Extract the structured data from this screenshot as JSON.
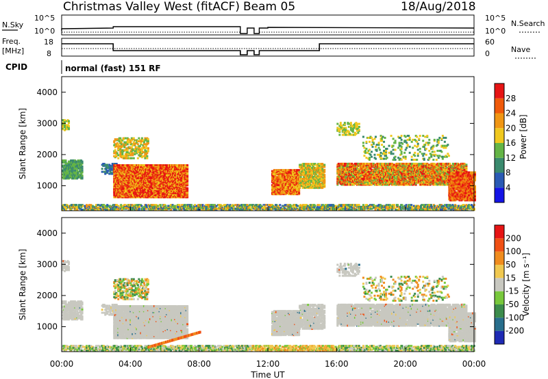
{
  "header": {
    "title": "Christmas Valley West (fitACF)",
    "beam": "Beam 05",
    "date": "18/Aug/2018"
  },
  "strip_nsky": {
    "left_label": "N.Sky",
    "left_ticks": [
      "10^5",
      "10^0"
    ],
    "right_label": "N.Search",
    "right_ticks": [
      "10^5",
      "10^0"
    ]
  },
  "strip_freq": {
    "left_label_1": "Freq.",
    "left_label_2": "[MHz]",
    "left_ticks": [
      "18",
      "8"
    ],
    "right_label": "Nave",
    "right_ticks": [
      "60",
      "0"
    ]
  },
  "cpid": {
    "label": "CPID",
    "text": "normal (fast) 151 RF"
  },
  "colors": {
    "scatter_gray": "#c8c8c0",
    "power_red": "#e8221a",
    "power_orange": "#f07a1a",
    "power_yellow": "#f2c21c",
    "power_green": "#3e9e4e",
    "power_blue": "#2a3ecc"
  },
  "chart_data": [
    {
      "type": "heatmap",
      "panel": "power",
      "ylabel": "Slant Range [km]",
      "y_ticks": [
        "1000",
        "2000",
        "3000",
        "4000"
      ],
      "ylim": [
        200,
        4500
      ],
      "colorbar_label": "Power [dB]",
      "colorbar_ticks": [
        "4",
        "8",
        "12",
        "16",
        "20",
        "24",
        "28"
      ],
      "colorbar_colors": [
        "#1414e6",
        "#2a5ab4",
        "#3a8a6e",
        "#64b446",
        "#f0c81e",
        "#f09614",
        "#f05a0a",
        "#e61414"
      ]
    },
    {
      "type": "heatmap",
      "panel": "velocity",
      "ylabel": "Slant Range [km]",
      "y_ticks": [
        "1000",
        "2000",
        "3000",
        "4000"
      ],
      "ylim": [
        200,
        4500
      ],
      "colorbar_label": "Velocity [m s⁻¹]",
      "colorbar_ticks": [
        "200",
        "100",
        "50",
        "15",
        "-15",
        "-50",
        "-100",
        "-200"
      ],
      "colorbar_colors": [
        "#1e2ab4",
        "#286e8c",
        "#3c8c4c",
        "#78c83c",
        "#c8c8c0",
        "#f0c850",
        "#f08c1e",
        "#f05014",
        "#e61414"
      ]
    }
  ],
  "x_axis": {
    "label": "Time UT",
    "ticks": [
      "00:00",
      "04:00",
      "08:00",
      "12:00",
      "16:00",
      "20:00",
      "00:00"
    ]
  }
}
